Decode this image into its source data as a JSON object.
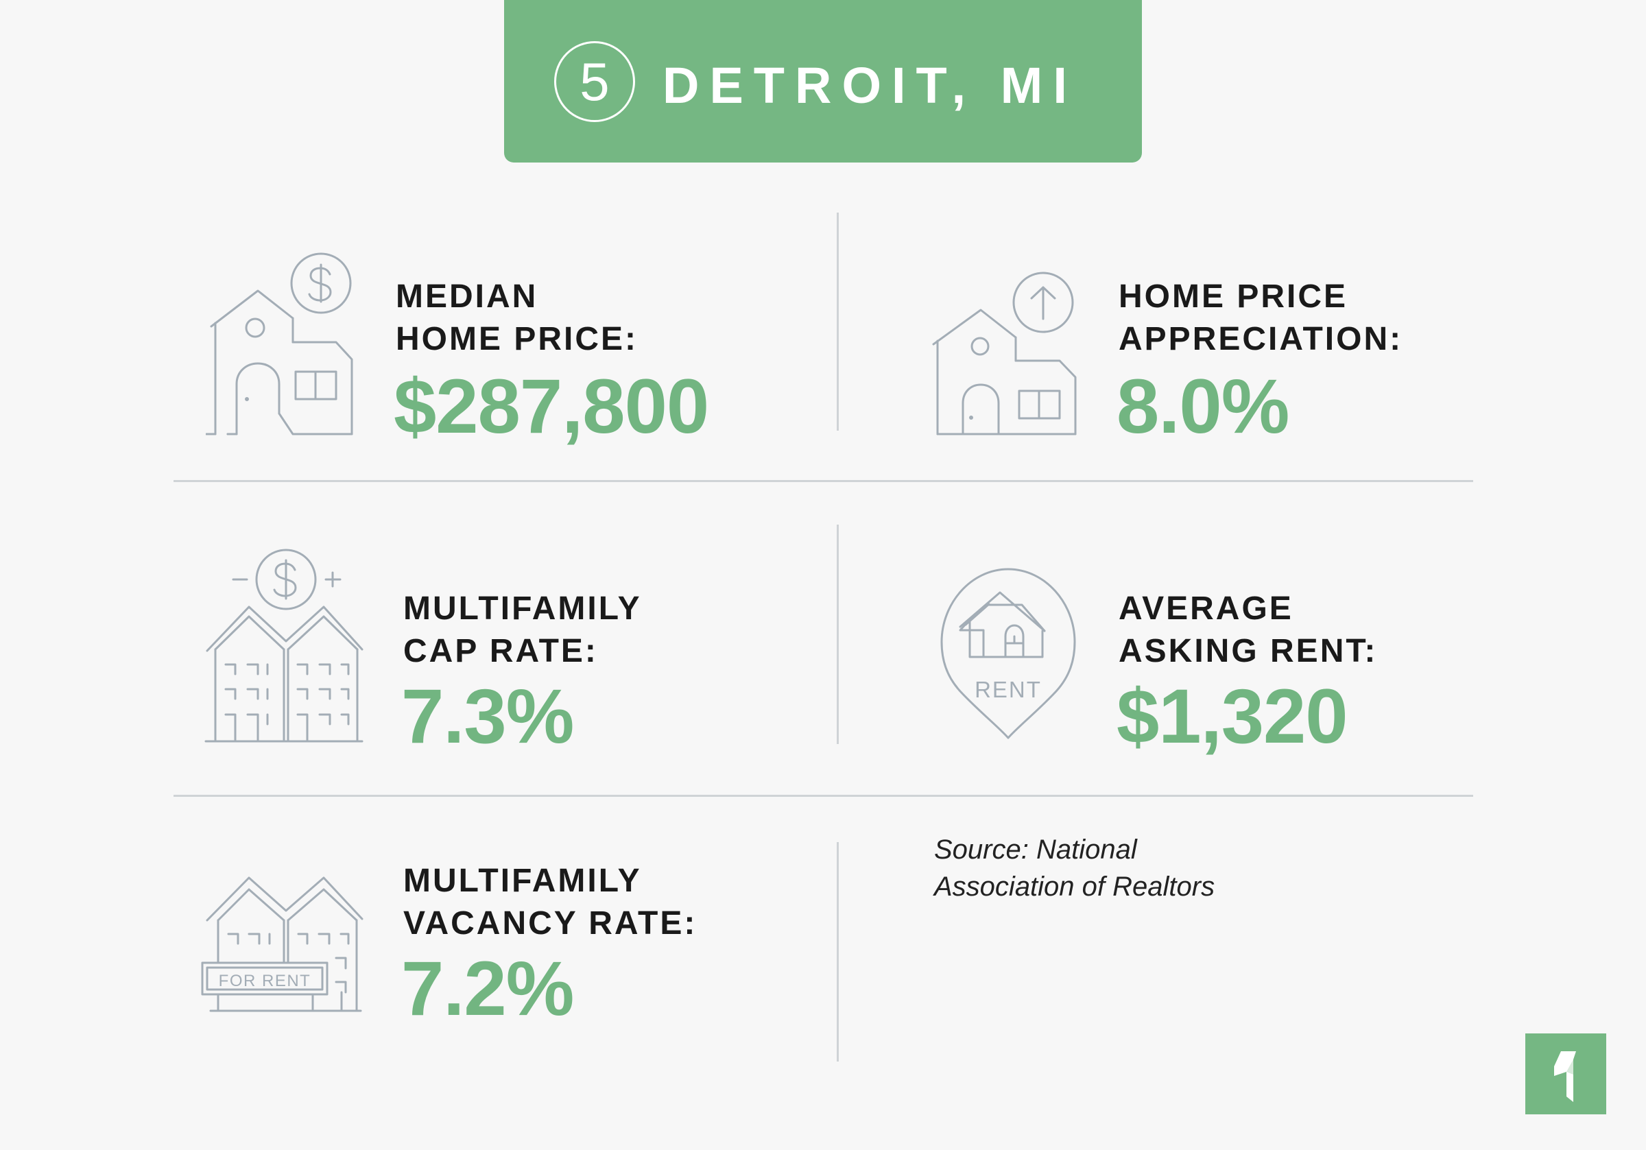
{
  "header": {
    "rank": "5",
    "title": "DETROIT, MI"
  },
  "stats": [
    {
      "label_line1": "MEDIAN",
      "label_line2": "HOME PRICE:",
      "value": "$287,800",
      "icon": "house-dollar-icon"
    },
    {
      "label_line1": "HOME PRICE",
      "label_line2": "APPRECIATION:",
      "value": "8.0%",
      "icon": "house-arrow-up-icon"
    },
    {
      "label_line1": "MULTIFAMILY",
      "label_line2": "CAP RATE:",
      "value": "7.3%",
      "icon": "multifamily-dollar-icon"
    },
    {
      "label_line1": "AVERAGE",
      "label_line2": "ASKING RENT:",
      "value": "$1,320",
      "icon": "rent-pin-icon"
    },
    {
      "label_line1": "MULTIFAMILY",
      "label_line2": "VACANCY RATE:",
      "value": "7.2%",
      "icon": "for-rent-building-icon"
    }
  ],
  "icon_text": {
    "rent_pin": "RENT",
    "for_rent_sign": "FOR RENT"
  },
  "source": {
    "line1": "Source: National",
    "line2": "Association of Realtors"
  },
  "colors": {
    "accent_green": "#75b783",
    "value_green": "#72b581",
    "icon_gray": "#a3adb6",
    "divider": "#cfd3d6"
  },
  "logo": "brand-logo-icon"
}
